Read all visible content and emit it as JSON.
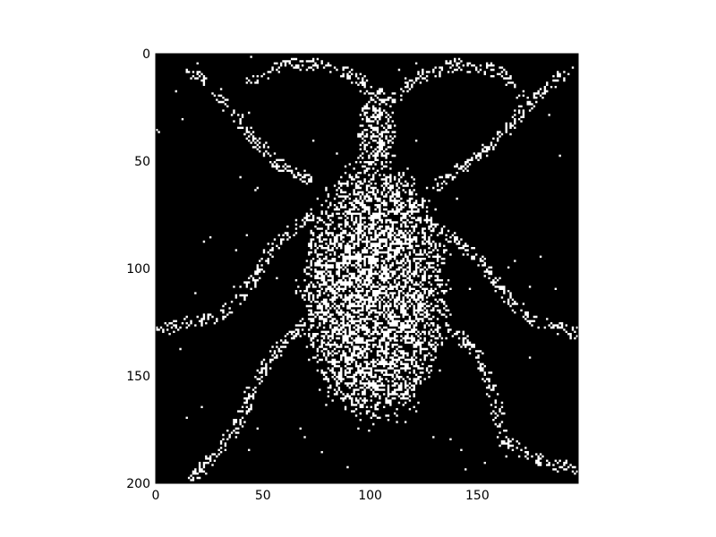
{
  "chart_data": {
    "type": "heatmap",
    "image_style": "binary",
    "colors": {
      "background": "#000000",
      "foreground": "#ffffff",
      "frame": "#000000"
    },
    "xlim": [
      0,
      197
    ],
    "ylim": [
      200,
      0
    ],
    "x_ticks": [
      0,
      50,
      100,
      150
    ],
    "y_ticks": [
      0,
      50,
      100,
      150,
      200
    ],
    "x_tick_labels": [
      "0",
      "50",
      "100",
      "150"
    ],
    "y_tick_labels": [
      "0",
      "50",
      "100",
      "150",
      "200"
    ],
    "grid": false,
    "legend": "none",
    "title": "",
    "xlabel": "",
    "ylabel": "",
    "subject": "insect silhouette, noisy white pixels on black",
    "blobs": [
      {
        "cx": 102,
        "cy": 110,
        "rx": 33,
        "ry": 60,
        "density": 0.55
      },
      {
        "cx": 103,
        "cy": 40,
        "rx": 9,
        "ry": 26,
        "density": 0.45
      }
    ],
    "strokes": [
      {
        "points": [
          [
            105,
            25
          ],
          [
            95,
            12
          ],
          [
            80,
            5
          ],
          [
            60,
            5
          ],
          [
            45,
            12
          ]
        ],
        "width": 3,
        "density": 0.35
      },
      {
        "points": [
          [
            108,
            25
          ],
          [
            120,
            12
          ],
          [
            140,
            5
          ],
          [
            160,
            8
          ],
          [
            170,
            18
          ]
        ],
        "width": 3,
        "density": 0.35
      },
      {
        "points": [
          [
            17,
            8
          ],
          [
            30,
            20
          ],
          [
            42,
            35
          ],
          [
            55,
            50
          ],
          [
            70,
            58
          ]
        ],
        "width": 3,
        "density": 0.4
      },
      {
        "points": [
          [
            190,
            10
          ],
          [
            175,
            22
          ],
          [
            160,
            40
          ],
          [
            140,
            55
          ],
          [
            130,
            62
          ]
        ],
        "width": 3,
        "density": 0.4
      },
      {
        "points": [
          [
            72,
            75
          ],
          [
            55,
            90
          ],
          [
            42,
            110
          ],
          [
            30,
            122
          ],
          [
            3,
            128
          ]
        ],
        "width": 3,
        "density": 0.4
      },
      {
        "points": [
          [
            130,
            80
          ],
          [
            150,
            95
          ],
          [
            165,
            115
          ],
          [
            178,
            125
          ],
          [
            195,
            130
          ]
        ],
        "width": 3,
        "density": 0.4
      },
      {
        "points": [
          [
            75,
            120
          ],
          [
            55,
            140
          ],
          [
            45,
            155
          ],
          [
            40,
            170
          ],
          [
            30,
            185
          ],
          [
            18,
            197
          ]
        ],
        "width": 3,
        "density": 0.4
      },
      {
        "points": [
          [
            130,
            120
          ],
          [
            150,
            140
          ],
          [
            158,
            160
          ],
          [
            162,
            180
          ],
          [
            180,
            190
          ],
          [
            195,
            193
          ]
        ],
        "width": 3,
        "density": 0.4
      }
    ],
    "background_noise_density": 0.002,
    "random_seed": 7
  }
}
